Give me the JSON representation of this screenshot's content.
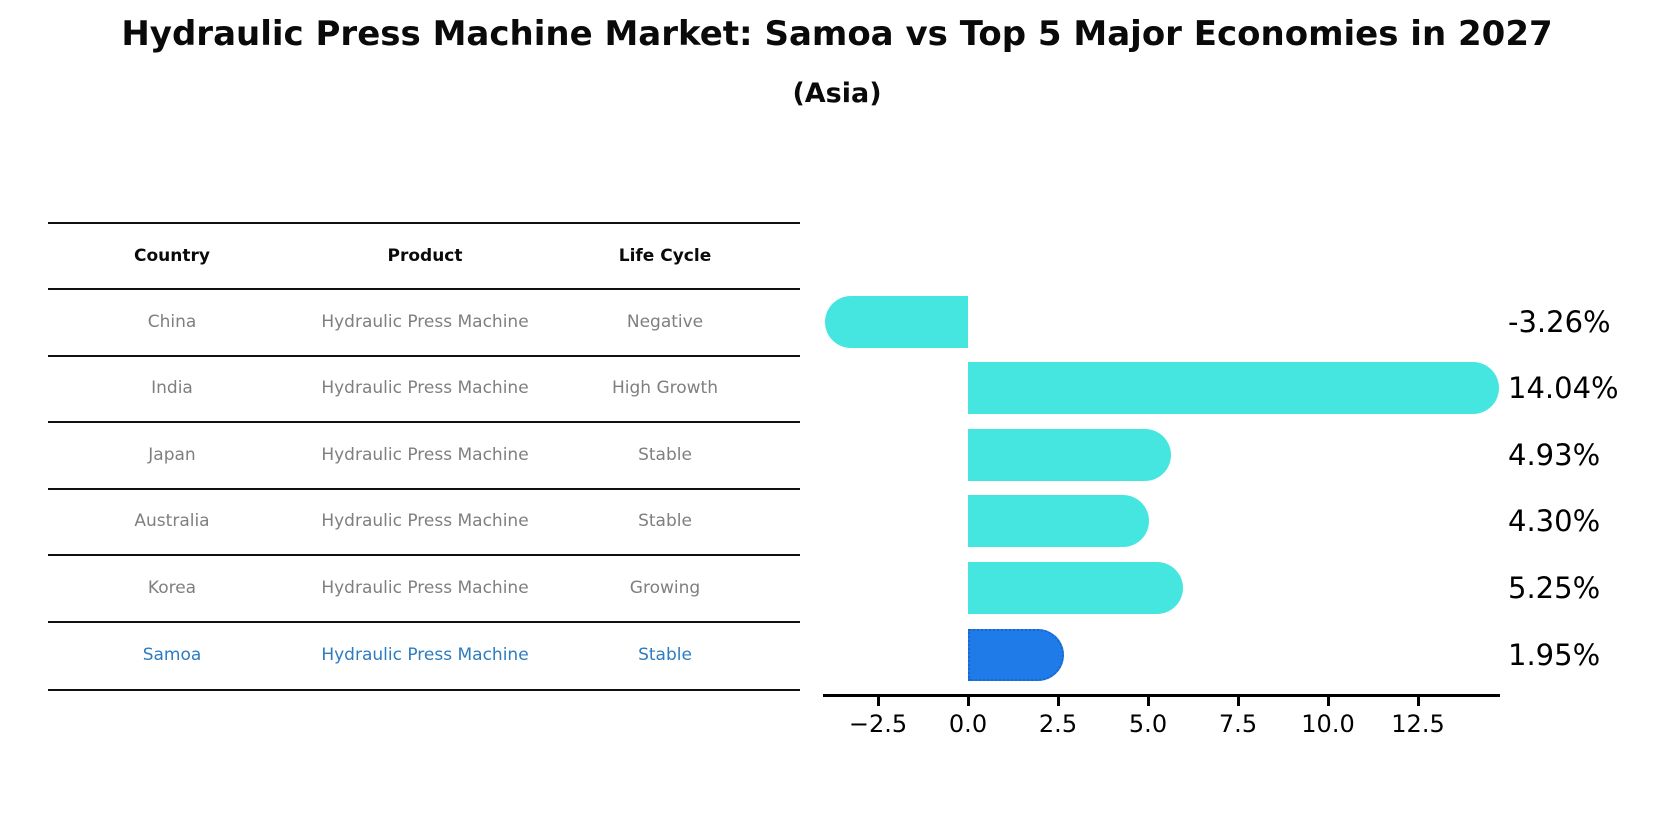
{
  "title": "Hydraulic Press Machine Market: Samoa vs Top 5 Major Economies in 2027",
  "subtitle": "(Asia)",
  "colors": {
    "bar_default": "#45E6E0",
    "bar_highlight": "#1E7BE8",
    "bar_highlight_border": "#1A66CC",
    "table_text": "#7f7f7f",
    "table_highlight_text": "#2E7BC0",
    "header_text": "#0a0a0a",
    "axis": "#000000",
    "value_label_text": "#000000"
  },
  "table": {
    "headers": [
      "Country",
      "Product",
      "Life Cycle"
    ],
    "rows": [
      {
        "country": "China",
        "product": "Hydraulic Press Machine",
        "life_cycle": "Negative",
        "highlight": false
      },
      {
        "country": "India",
        "product": "Hydraulic Press Machine",
        "life_cycle": "High Growth",
        "highlight": false
      },
      {
        "country": "Japan",
        "product": "Hydraulic Press Machine",
        "life_cycle": "Stable",
        "highlight": false
      },
      {
        "country": "Australia",
        "product": "Hydraulic Press Machine",
        "life_cycle": "Stable",
        "highlight": false
      },
      {
        "country": "Korea",
        "product": "Hydraulic Press Machine",
        "life_cycle": "Growing",
        "highlight": false
      },
      {
        "country": "Samoa",
        "product": "Hydraulic Press Machine",
        "life_cycle": "Stable",
        "highlight": true
      }
    ]
  },
  "chart_data": {
    "type": "bar",
    "orientation": "horizontal",
    "title": "Hydraulic Press Machine Market: Samoa vs Top 5 Major Economies in 2027",
    "subtitle": "(Asia)",
    "categories": [
      "China",
      "India",
      "Japan",
      "Australia",
      "Korea",
      "Samoa"
    ],
    "values": [
      -3.26,
      14.04,
      4.93,
      4.3,
      5.25,
      1.95
    ],
    "value_labels": [
      "-3.26%",
      "14.04%",
      "4.93%",
      "4.30%",
      "5.25%",
      "1.95%"
    ],
    "highlight_category": "Samoa",
    "xlabel": "",
    "ylabel": "",
    "xlim": [
      -4.0,
      14.8
    ],
    "x_ticks": [
      -2.5,
      0.0,
      2.5,
      5.0,
      7.5,
      10.0,
      12.5
    ],
    "x_tick_labels": [
      "−2.5",
      "0.0",
      "2.5",
      "5.0",
      "7.5",
      "10.0",
      "12.5"
    ],
    "grid": false,
    "legend": false
  }
}
